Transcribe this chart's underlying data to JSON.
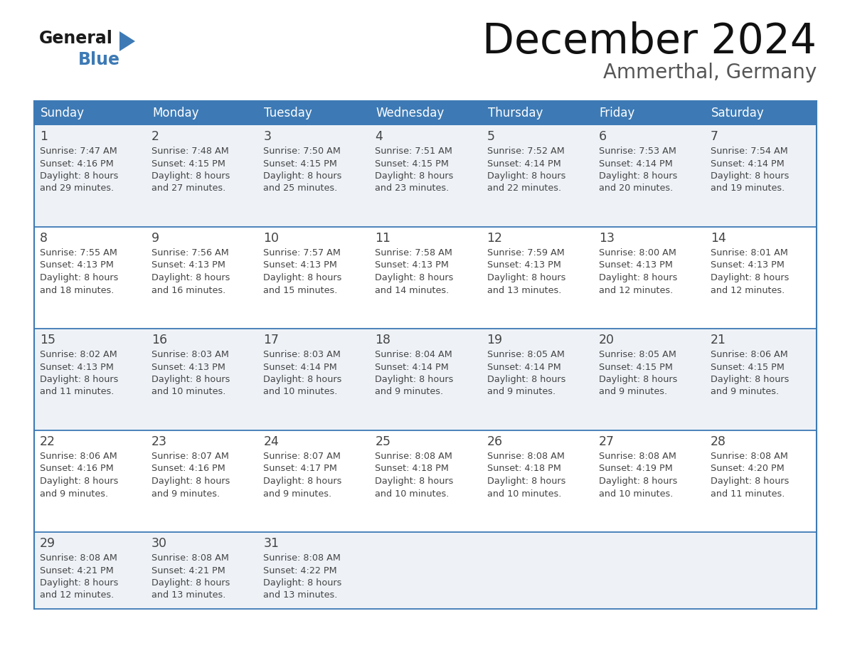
{
  "title": "December 2024",
  "subtitle": "Ammerthal, Germany",
  "header_bg": "#3d7ab5",
  "header_text": "#ffffff",
  "row_bg_light": "#eef2f7",
  "row_bg_white": "#ffffff",
  "border_color": "#3d7ab5",
  "days_of_week": [
    "Sunday",
    "Monday",
    "Tuesday",
    "Wednesday",
    "Thursday",
    "Friday",
    "Saturday"
  ],
  "calendar_data": [
    [
      {
        "day": 1,
        "sunrise": "7:47 AM",
        "sunset": "4:16 PM",
        "daylight_h": "8 hours",
        "daylight_m": "and 29 minutes."
      },
      {
        "day": 2,
        "sunrise": "7:48 AM",
        "sunset": "4:15 PM",
        "daylight_h": "8 hours",
        "daylight_m": "and 27 minutes."
      },
      {
        "day": 3,
        "sunrise": "7:50 AM",
        "sunset": "4:15 PM",
        "daylight_h": "8 hours",
        "daylight_m": "and 25 minutes."
      },
      {
        "day": 4,
        "sunrise": "7:51 AM",
        "sunset": "4:15 PM",
        "daylight_h": "8 hours",
        "daylight_m": "and 23 minutes."
      },
      {
        "day": 5,
        "sunrise": "7:52 AM",
        "sunset": "4:14 PM",
        "daylight_h": "8 hours",
        "daylight_m": "and 22 minutes."
      },
      {
        "day": 6,
        "sunrise": "7:53 AM",
        "sunset": "4:14 PM",
        "daylight_h": "8 hours",
        "daylight_m": "and 20 minutes."
      },
      {
        "day": 7,
        "sunrise": "7:54 AM",
        "sunset": "4:14 PM",
        "daylight_h": "8 hours",
        "daylight_m": "and 19 minutes."
      }
    ],
    [
      {
        "day": 8,
        "sunrise": "7:55 AM",
        "sunset": "4:13 PM",
        "daylight_h": "8 hours",
        "daylight_m": "and 18 minutes."
      },
      {
        "day": 9,
        "sunrise": "7:56 AM",
        "sunset": "4:13 PM",
        "daylight_h": "8 hours",
        "daylight_m": "and 16 minutes."
      },
      {
        "day": 10,
        "sunrise": "7:57 AM",
        "sunset": "4:13 PM",
        "daylight_h": "8 hours",
        "daylight_m": "and 15 minutes."
      },
      {
        "day": 11,
        "sunrise": "7:58 AM",
        "sunset": "4:13 PM",
        "daylight_h": "8 hours",
        "daylight_m": "and 14 minutes."
      },
      {
        "day": 12,
        "sunrise": "7:59 AM",
        "sunset": "4:13 PM",
        "daylight_h": "8 hours",
        "daylight_m": "and 13 minutes."
      },
      {
        "day": 13,
        "sunrise": "8:00 AM",
        "sunset": "4:13 PM",
        "daylight_h": "8 hours",
        "daylight_m": "and 12 minutes."
      },
      {
        "day": 14,
        "sunrise": "8:01 AM",
        "sunset": "4:13 PM",
        "daylight_h": "8 hours",
        "daylight_m": "and 12 minutes."
      }
    ],
    [
      {
        "day": 15,
        "sunrise": "8:02 AM",
        "sunset": "4:13 PM",
        "daylight_h": "8 hours",
        "daylight_m": "and 11 minutes."
      },
      {
        "day": 16,
        "sunrise": "8:03 AM",
        "sunset": "4:13 PM",
        "daylight_h": "8 hours",
        "daylight_m": "and 10 minutes."
      },
      {
        "day": 17,
        "sunrise": "8:03 AM",
        "sunset": "4:14 PM",
        "daylight_h": "8 hours",
        "daylight_m": "and 10 minutes."
      },
      {
        "day": 18,
        "sunrise": "8:04 AM",
        "sunset": "4:14 PM",
        "daylight_h": "8 hours",
        "daylight_m": "and 9 minutes."
      },
      {
        "day": 19,
        "sunrise": "8:05 AM",
        "sunset": "4:14 PM",
        "daylight_h": "8 hours",
        "daylight_m": "and 9 minutes."
      },
      {
        "day": 20,
        "sunrise": "8:05 AM",
        "sunset": "4:15 PM",
        "daylight_h": "8 hours",
        "daylight_m": "and 9 minutes."
      },
      {
        "day": 21,
        "sunrise": "8:06 AM",
        "sunset": "4:15 PM",
        "daylight_h": "8 hours",
        "daylight_m": "and 9 minutes."
      }
    ],
    [
      {
        "day": 22,
        "sunrise": "8:06 AM",
        "sunset": "4:16 PM",
        "daylight_h": "8 hours",
        "daylight_m": "and 9 minutes."
      },
      {
        "day": 23,
        "sunrise": "8:07 AM",
        "sunset": "4:16 PM",
        "daylight_h": "8 hours",
        "daylight_m": "and 9 minutes."
      },
      {
        "day": 24,
        "sunrise": "8:07 AM",
        "sunset": "4:17 PM",
        "daylight_h": "8 hours",
        "daylight_m": "and 9 minutes."
      },
      {
        "day": 25,
        "sunrise": "8:08 AM",
        "sunset": "4:18 PM",
        "daylight_h": "8 hours",
        "daylight_m": "and 10 minutes."
      },
      {
        "day": 26,
        "sunrise": "8:08 AM",
        "sunset": "4:18 PM",
        "daylight_h": "8 hours",
        "daylight_m": "and 10 minutes."
      },
      {
        "day": 27,
        "sunrise": "8:08 AM",
        "sunset": "4:19 PM",
        "daylight_h": "8 hours",
        "daylight_m": "and 10 minutes."
      },
      {
        "day": 28,
        "sunrise": "8:08 AM",
        "sunset": "4:20 PM",
        "daylight_h": "8 hours",
        "daylight_m": "and 11 minutes."
      }
    ],
    [
      {
        "day": 29,
        "sunrise": "8:08 AM",
        "sunset": "4:21 PM",
        "daylight_h": "8 hours",
        "daylight_m": "and 12 minutes."
      },
      {
        "day": 30,
        "sunrise": "8:08 AM",
        "sunset": "4:21 PM",
        "daylight_h": "8 hours",
        "daylight_m": "and 13 minutes."
      },
      {
        "day": 31,
        "sunrise": "8:08 AM",
        "sunset": "4:22 PM",
        "daylight_h": "8 hours",
        "daylight_m": "and 13 minutes."
      },
      null,
      null,
      null,
      null
    ]
  ]
}
